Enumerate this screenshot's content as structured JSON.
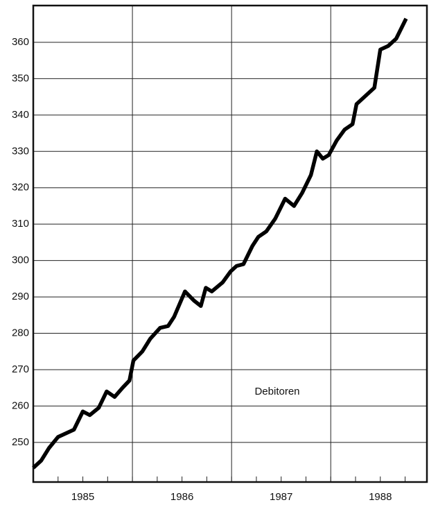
{
  "chart_data": {
    "type": "line",
    "annotation": "Debitoren",
    "x": [
      1985.0,
      1985.08,
      1985.16,
      1985.25,
      1985.33,
      1985.41,
      1985.5,
      1985.57,
      1985.66,
      1985.74,
      1985.82,
      1985.9,
      1985.97,
      1986.01,
      1986.1,
      1986.18,
      1986.28,
      1986.36,
      1986.42,
      1986.53,
      1986.62,
      1986.69,
      1986.74,
      1986.8,
      1986.91,
      1986.99,
      1987.05,
      1987.12,
      1987.21,
      1987.27,
      1987.35,
      1987.44,
      1987.54,
      1987.63,
      1987.71,
      1987.8,
      1987.86,
      1987.92,
      1987.98,
      1988.06,
      1988.14,
      1988.22,
      1988.26,
      1988.34,
      1988.44,
      1988.5,
      1988.58,
      1988.66,
      1988.76
    ],
    "series": [
      {
        "name": "Debitoren",
        "color": "#000000",
        "values": [
          243,
          245,
          248.5,
          251.5,
          252.5,
          253.5,
          258.5,
          257.5,
          259.5,
          264,
          262.5,
          265,
          267,
          272.5,
          275,
          278.5,
          281.5,
          282,
          284.5,
          291.5,
          289,
          287.5,
          292.5,
          291.5,
          294,
          297,
          298.5,
          299,
          304,
          306.5,
          308,
          311.5,
          317,
          315,
          318.5,
          323.5,
          330,
          328,
          329,
          333,
          336,
          337.5,
          343,
          345,
          347.5,
          358,
          359,
          361,
          366.5
        ]
      }
    ],
    "xlim": [
      1985.0,
      1988.97
    ],
    "xticks": [
      {
        "value": 1985.5,
        "label": "1985"
      },
      {
        "value": 1986.5,
        "label": "1986"
      },
      {
        "value": 1987.5,
        "label": "1987"
      },
      {
        "value": 1988.5,
        "label": "1988"
      }
    ],
    "xgrid": [
      1986,
      1987,
      1988
    ],
    "ylim": [
      239.1,
      370.1
    ],
    "yticks": [
      250,
      260,
      270,
      280,
      290,
      300,
      310,
      320,
      330,
      340,
      350,
      360
    ],
    "grid": true
  }
}
